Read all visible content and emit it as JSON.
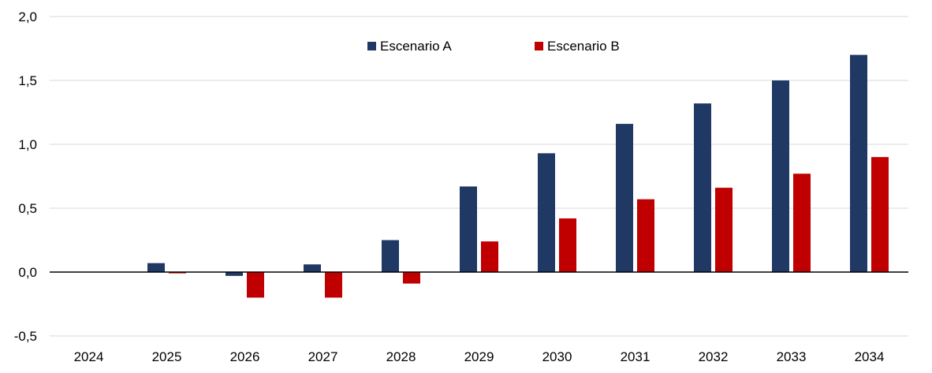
{
  "chart_data": {
    "type": "bar",
    "title": "",
    "xlabel": "",
    "ylabel": "",
    "categories": [
      "2024",
      "2025",
      "2026",
      "2027",
      "2028",
      "2029",
      "2030",
      "2031",
      "2032",
      "2033",
      "2034"
    ],
    "series": [
      {
        "name": "Escenario A",
        "color": "#1f3864",
        "values": [
          0.0,
          0.07,
          -0.03,
          0.06,
          0.25,
          0.67,
          0.93,
          1.16,
          1.32,
          1.5,
          1.7
        ]
      },
      {
        "name": "Escenario B",
        "color": "#c00000",
        "values": [
          0.0,
          -0.01,
          -0.2,
          -0.2,
          -0.09,
          0.24,
          0.42,
          0.57,
          0.66,
          0.77,
          0.9
        ]
      }
    ],
    "ylim": [
      -0.5,
      2.0
    ],
    "yticks": [
      2.0,
      1.5,
      1.0,
      0.5,
      0.0,
      -0.5
    ],
    "ytick_labels": [
      "2,0",
      "1,5",
      "1,0",
      "0,5",
      "0,0",
      "-0,5"
    ],
    "grid": true,
    "legend_position": "top-center"
  }
}
